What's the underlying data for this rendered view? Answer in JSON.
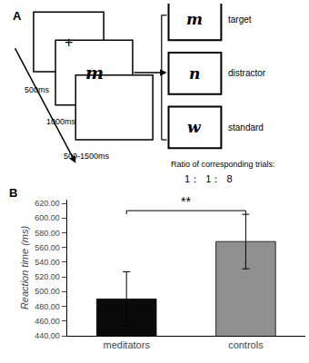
{
  "chart_data": {
    "type": "bar",
    "categories": [
      "meditators",
      "controls"
    ],
    "values": [
      490,
      568
    ],
    "errors": [
      37,
      37
    ],
    "colors": [
      "#0a0a0a",
      "#909090"
    ],
    "ylabel": "Reaction time (ms)",
    "ylim": [
      440,
      625
    ],
    "yticks": [
      {
        "value": 440,
        "label": "440.00"
      },
      {
        "value": 460,
        "label": "460.00"
      },
      {
        "value": 480,
        "label": "480.00"
      },
      {
        "value": 500,
        "label": "500.00"
      },
      {
        "value": 520,
        "label": "520.00"
      },
      {
        "value": 540,
        "label": "540.00"
      },
      {
        "value": 560,
        "label": "560.00"
      },
      {
        "value": 580,
        "label": "580.00"
      },
      {
        "value": 600,
        "label": "600.00"
      },
      {
        "value": 620,
        "label": "620.00"
      }
    ],
    "grid": false,
    "annotations": [
      "A",
      "+",
      "m",
      "500ms",
      "1000ms",
      "500-1500ms",
      "m",
      "target",
      "n",
      "distractor",
      "w",
      "standard",
      "Ratio of corresponding trials:",
      "1：  1：  8",
      "B",
      "**"
    ]
  }
}
